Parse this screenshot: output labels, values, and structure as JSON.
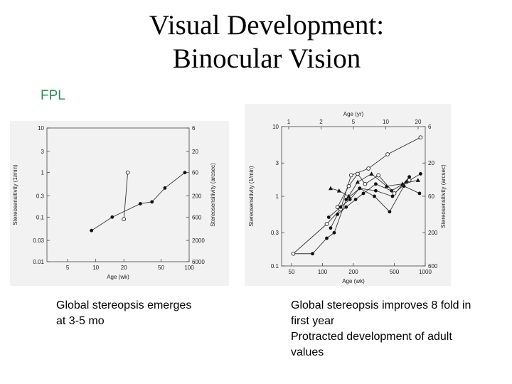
{
  "slide": {
    "title_line1": "Visual Development:",
    "title_line2": "Binocular Vision",
    "section_label": "FPL",
    "caption_left": "Global stereopsis emerges at 3-5 mo",
    "caption_right_line1": "Global stereopsis improves 8 fold in first year",
    "caption_right_line2": "Protracted development of adult values"
  },
  "chart_data": [
    {
      "type": "line",
      "xlabel": "Age (wk)",
      "ylabel": "Stereosensitivity (1/min)",
      "ylabel_right": "Stereosensitivity (arcsec)",
      "x_scale": "log",
      "y_scale": "log",
      "xlim": [
        3,
        100
      ],
      "ylim": [
        0.01,
        10
      ],
      "x_ticks": [
        5,
        10,
        20,
        50,
        100
      ],
      "y_ticks": [
        10,
        3,
        1,
        0.3,
        0.1,
        0.03,
        0.01
      ],
      "y_ticks_labels": [
        "10",
        "3",
        "1",
        "0.3",
        "0.1",
        "0.03",
        "0.01"
      ],
      "y_right_ticks": [
        6,
        20,
        60,
        200,
        600,
        2000,
        6000
      ],
      "series": [
        {
          "marker": "filled",
          "x": [
            9,
            15,
            30,
            40,
            55,
            90
          ],
          "y": [
            0.05,
            0.1,
            0.2,
            0.22,
            0.45,
            1.0
          ]
        },
        {
          "marker": "open",
          "x": [
            20,
            22
          ],
          "y": [
            0.09,
            1.0
          ]
        }
      ]
    },
    {
      "type": "line",
      "xlabel": "Age (wk)",
      "xlabel_top": "Age (yr)",
      "ylabel": "Stereosensitivity (1/min)",
      "ylabel_right": "Stereosensitivity (arcsec)",
      "x_scale": "log",
      "y_scale": "log",
      "xlim": [
        40,
        1000
      ],
      "ylim": [
        0.1,
        10
      ],
      "x_ticks": [
        50,
        100,
        200,
        500,
        1000
      ],
      "x_top_ticks": [
        "1",
        "2",
        "5",
        "10",
        "20"
      ],
      "y_ticks": [
        10,
        3,
        1,
        0.3,
        0.1
      ],
      "y_ticks_labels": [
        "10",
        "3",
        "1",
        "0.3",
        "0.1"
      ],
      "y_right_ticks": [
        6,
        20,
        60,
        200,
        600
      ],
      "series": [
        {
          "marker": "filled",
          "x": [
            52,
            80,
            110,
            130,
            170,
            230,
            330,
            480,
            700
          ],
          "y": [
            0.15,
            0.15,
            0.25,
            0.3,
            0.9,
            1.3,
            1.2,
            1.0,
            1.9
          ]
        },
        {
          "marker": "open",
          "x": [
            52,
            110,
            150,
            190,
            280,
            430,
            900
          ],
          "y": [
            0.15,
            0.4,
            0.65,
            2.0,
            2.5,
            4.0,
            7.0
          ]
        },
        {
          "marker": "filled",
          "x": [
            120,
            140,
            170,
            210,
            250,
            330,
            470,
            660,
            900
          ],
          "y": [
            0.35,
            0.55,
            0.7,
            0.9,
            1.1,
            1.5,
            1.2,
            1.6,
            2.1
          ]
        },
        {
          "marker": "filled",
          "x": [
            115,
            150,
            185,
            230,
            320,
            450,
            620,
            880
          ],
          "y": [
            0.5,
            0.7,
            0.9,
            1.3,
            1.0,
            0.6,
            1.4,
            1.1
          ]
        },
        {
          "marker": "triangle",
          "x": [
            120,
            145,
            180,
            220,
            300,
            420,
            600,
            850
          ],
          "y": [
            1.3,
            1.2,
            1.0,
            1.6,
            2.1,
            1.4,
            1.5,
            1.7
          ]
        },
        {
          "marker": "open",
          "x": [
            140,
            180,
            220,
            260,
            350,
            500,
            700
          ],
          "y": [
            0.7,
            1.4,
            2.1,
            1.5,
            2.0,
            1.1,
            1.7
          ]
        }
      ]
    }
  ]
}
